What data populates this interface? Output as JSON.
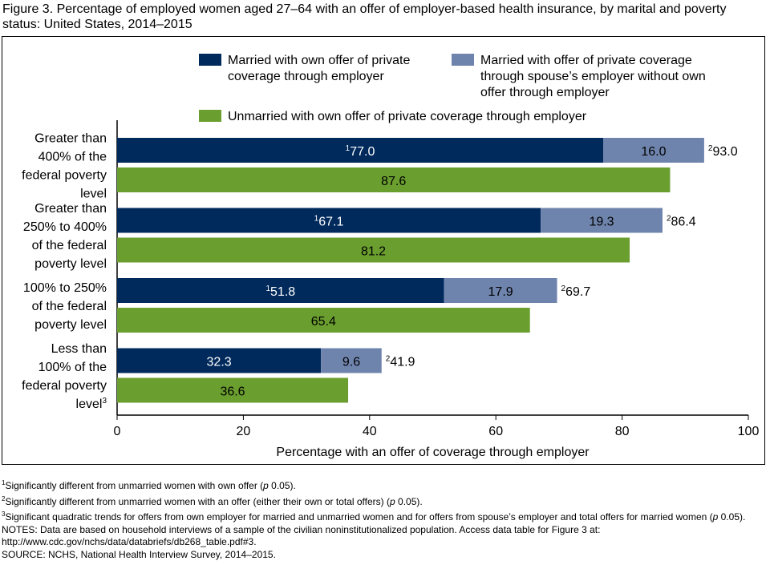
{
  "title": "Figure 3. Percentage of employed women aged 27–64 with an offer of employer-based health insurance, by marital and poverty status: United States, 2014–2015",
  "chart_data": {
    "type": "bar",
    "orientation": "horizontal",
    "stacked_married": true,
    "categories": [
      {
        "lines": [
          "Greater than",
          "400% of the",
          "federal poverty",
          "level"
        ],
        "note": ""
      },
      {
        "lines": [
          "Greater than",
          "250% to 400%",
          "of the federal",
          "poverty level"
        ],
        "note": ""
      },
      {
        "lines": [
          "100% to 250%",
          "of the federal",
          "poverty level"
        ],
        "note": ""
      },
      {
        "lines": [
          "Less than",
          "100% of the",
          "federal poverty",
          "level"
        ],
        "note": "3"
      }
    ],
    "series": [
      {
        "name": "Married with own offer of private coverage through employer",
        "legend_lines": [
          "Married with own offer of private",
          "coverage through employer"
        ],
        "color": "#002a5c",
        "values": [
          77.0,
          67.1,
          51.8,
          32.3
        ],
        "notes": [
          "1",
          "1",
          "1",
          ""
        ]
      },
      {
        "name": "Married with offer of private coverage through spouse’s employer without own offer through employer",
        "legend_lines": [
          "Married with offer of private coverage",
          "through spouse’s employer without own",
          "offer through employer"
        ],
        "color": "#6f84ad",
        "values": [
          16.0,
          19.3,
          17.9,
          9.6
        ],
        "notes": [
          "",
          "",
          "",
          ""
        ]
      },
      {
        "name": "Unmarried with own offer of private coverage through employer",
        "legend_lines": [
          "Unmarried with own offer of private coverage through employer"
        ],
        "color": "#6a9e2f",
        "values": [
          87.6,
          81.2,
          65.4,
          36.6
        ],
        "notes": [
          "",
          "",
          "",
          ""
        ]
      }
    ],
    "married_totals": {
      "values": [
        93.0,
        86.4,
        69.7,
        41.9
      ],
      "notes": [
        "2",
        "2",
        "2",
        "2"
      ]
    },
    "xlabel": "Percentage with an offer of coverage through employer",
    "xlim": [
      0,
      100
    ],
    "xticks": [
      0,
      20,
      40,
      60,
      80,
      100
    ],
    "grid": false,
    "legend_position": "top"
  },
  "footnotes": [
    {
      "mark": "1",
      "text": "Significantly different from unmarried women with own offer (p < 0.05)."
    },
    {
      "mark": "2",
      "text": "Significantly different from unmarried women with an offer (either their own or total offers) (p < 0.05)."
    },
    {
      "mark": "3",
      "text": "Significant quadratic trends for offers from own employer for married and unmarried women and for offers from spouse’s employer and total offers for married women (p < 0.05)."
    }
  ],
  "notes": "NOTES: Data are based on household interviews of a sample of the civilian noninstitutionalized population. Access data table for Figure 3 at: http://www.cdc.gov/nchs/data/databriefs/db268_table.pdf#3.",
  "source": "SOURCE: NCHS, National Health Interview Survey, 2014–2015."
}
